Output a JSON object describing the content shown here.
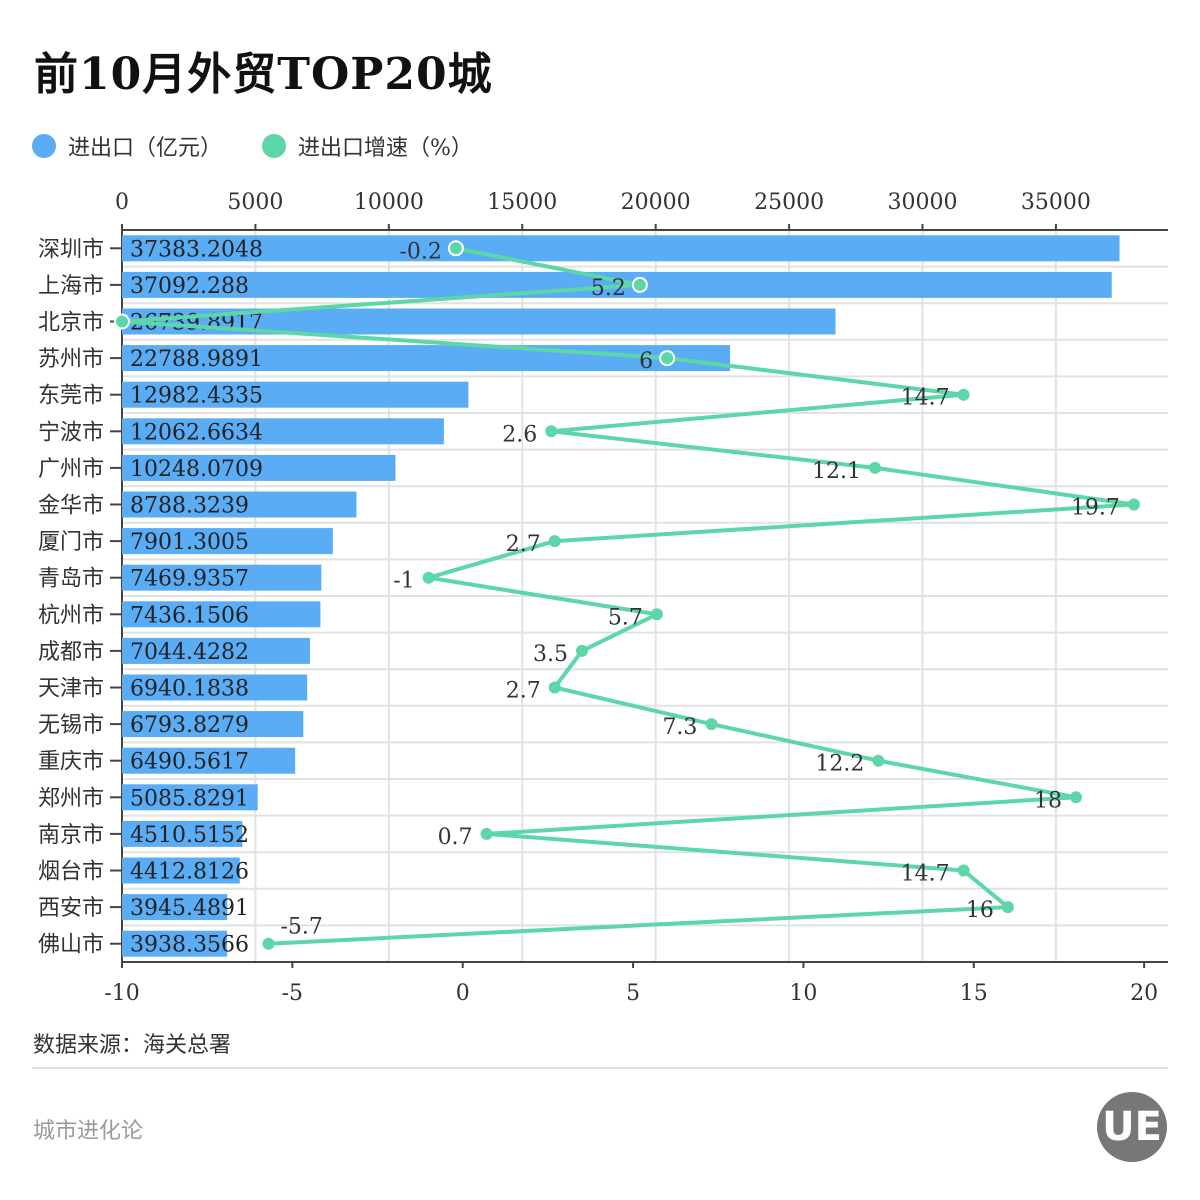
{
  "title": "前10月外贸TOP20城",
  "legend": [
    {
      "label": "进出口（亿元）",
      "color": "#5aacf5"
    },
    {
      "label": "进出口增速（%）",
      "color": "#5dd6a8"
    }
  ],
  "source": "数据来源：海关总署",
  "brand": "城市进化论",
  "logo_text": "UE URBAN EVOLUTION",
  "chart_data": {
    "type": "bar+line",
    "categories": [
      "深圳市",
      "上海市",
      "北京市",
      "苏州市",
      "东莞市",
      "宁波市",
      "广州市",
      "金华市",
      "厦门市",
      "青岛市",
      "杭州市",
      "成都市",
      "天津市",
      "无锡市",
      "重庆市",
      "郑州市",
      "南京市",
      "烟台市",
      "西安市",
      "佛山市"
    ],
    "series": [
      {
        "name": "进出口（亿元）",
        "type": "bar",
        "axis": "top",
        "color": "#5aacf5",
        "values": [
          37383.2048,
          37092.288,
          26739.8917,
          22788.9891,
          12982.4335,
          12062.6634,
          10248.0709,
          8788.3239,
          7901.3005,
          7469.9357,
          7436.1506,
          7044.4282,
          6940.1838,
          6793.8279,
          6490.5617,
          5085.8291,
          4510.5152,
          4412.8126,
          3945.4891,
          3938.3566
        ],
        "labels": [
          "37383.2048",
          "37092.288",
          "26739.8917",
          "22788.9891",
          "12982.4335",
          "12062.6634",
          "10248.0709",
          "8788.3239",
          "7901.3005",
          "7469.9357",
          "7436.1506",
          "7044.4282",
          "6940.1838",
          "6793.8279",
          "6490.5617",
          "5085.8291",
          "4510.5152",
          "4412.8126",
          "3945.4891",
          "3938.3566"
        ]
      },
      {
        "name": "进出口增速（%）",
        "type": "line",
        "axis": "bottom",
        "color": "#5dd6a8",
        "values": [
          -0.2,
          5.2,
          -10,
          6,
          14.7,
          2.6,
          12.1,
          19.7,
          2.7,
          -1,
          5.7,
          3.5,
          2.7,
          7.3,
          12.2,
          18,
          0.7,
          14.7,
          16,
          -5.7
        ],
        "labels": [
          "-0.2",
          "5.2",
          "",
          "6",
          "14.7",
          "2.6",
          "12.1",
          "19.7",
          "2.7",
          "-1",
          "5.7",
          "3.5",
          "2.7",
          "7.3",
          "12.2",
          "18",
          "0.7",
          "14.7",
          "16",
          "-5.7"
        ]
      }
    ],
    "top_axis": {
      "range": [
        0,
        39200
      ],
      "ticks": [
        "0",
        "5000",
        "10000",
        "15000",
        "20000",
        "25000",
        "30000",
        "35000"
      ]
    },
    "bottom_axis": {
      "range": [
        -10,
        20.7
      ],
      "ticks": [
        "-10",
        "-5",
        "0",
        "5",
        "10",
        "15",
        "20"
      ]
    },
    "grid": true,
    "legend_position": "top-left"
  }
}
